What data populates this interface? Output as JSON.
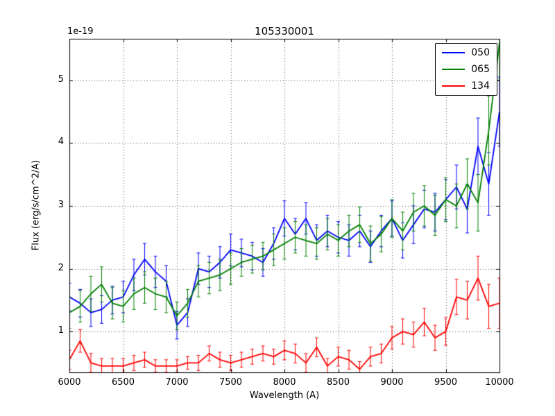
{
  "chart_data": {
    "type": "line",
    "title": "105330001",
    "xlabel": "Wavelength (A)",
    "ylabel": "Flux (erg/s/cm^2/A)",
    "y_offset_label": "1e-19",
    "xlim": [
      6000,
      10000
    ],
    "ylim": [
      0.35,
      5.66
    ],
    "xticks": [
      6000,
      6500,
      7000,
      7500,
      8000,
      8500,
      9000,
      9500,
      10000
    ],
    "yticks": [
      1,
      2,
      3,
      4,
      5
    ],
    "grid": true,
    "grid_style": "dotted",
    "legend_position": "upper right",
    "frame_color": "#000000",
    "background_color": "#ffffff",
    "x": [
      6000,
      6100,
      6200,
      6300,
      6400,
      6500,
      6600,
      6700,
      6800,
      6900,
      7000,
      7100,
      7200,
      7300,
      7400,
      7500,
      7600,
      7700,
      7800,
      7900,
      8000,
      8100,
      8200,
      8300,
      8400,
      8500,
      8600,
      8700,
      8800,
      8900,
      9000,
      9100,
      9200,
      9300,
      9400,
      9500,
      9600,
      9700,
      9800,
      9900,
      10000
    ],
    "series": [
      {
        "name": "050",
        "color": "#0000ff",
        "values": [
          1.55,
          1.45,
          1.3,
          1.35,
          1.5,
          1.55,
          1.9,
          2.15,
          1.95,
          1.8,
          1.1,
          1.3,
          2.0,
          1.95,
          2.1,
          2.3,
          2.25,
          2.2,
          2.1,
          2.4,
          2.8,
          2.55,
          2.8,
          2.45,
          2.6,
          2.5,
          2.45,
          2.6,
          2.35,
          2.6,
          2.8,
          2.45,
          2.7,
          2.95,
          2.9,
          3.1,
          3.3,
          2.95,
          3.95,
          3.35,
          4.5
        ],
        "errors": [
          0.22,
          0.22,
          0.22,
          0.22,
          0.22,
          0.25,
          0.25,
          0.25,
          0.25,
          0.25,
          0.22,
          0.22,
          0.25,
          0.25,
          0.25,
          0.25,
          0.22,
          0.22,
          0.22,
          0.25,
          0.28,
          0.25,
          0.25,
          0.25,
          0.25,
          0.25,
          0.25,
          0.25,
          0.25,
          0.25,
          0.28,
          0.28,
          0.3,
          0.3,
          0.3,
          0.32,
          0.35,
          0.38,
          0.45,
          0.5,
          0.55
        ]
      },
      {
        "name": "065",
        "color": "#008000",
        "values": [
          1.3,
          1.4,
          1.6,
          1.75,
          1.45,
          1.4,
          1.6,
          1.7,
          1.6,
          1.55,
          1.25,
          1.45,
          1.8,
          1.85,
          1.9,
          2.0,
          2.1,
          2.15,
          2.2,
          2.3,
          2.4,
          2.5,
          2.45,
          2.4,
          2.55,
          2.45,
          2.6,
          2.7,
          2.4,
          2.55,
          2.8,
          2.6,
          2.9,
          3.0,
          2.85,
          3.1,
          3.0,
          3.35,
          3.05,
          4.2,
          5.6
        ],
        "errors": [
          0.25,
          0.25,
          0.28,
          0.28,
          0.25,
          0.25,
          0.25,
          0.25,
          0.25,
          0.25,
          0.22,
          0.22,
          0.25,
          0.25,
          0.25,
          0.25,
          0.22,
          0.22,
          0.22,
          0.25,
          0.25,
          0.25,
          0.25,
          0.25,
          0.25,
          0.25,
          0.25,
          0.28,
          0.28,
          0.28,
          0.3,
          0.3,
          0.3,
          0.32,
          0.32,
          0.35,
          0.35,
          0.4,
          0.45,
          0.55,
          0.6
        ]
      },
      {
        "name": "134",
        "color": "#ff0000",
        "values": [
          0.55,
          0.85,
          0.5,
          0.45,
          0.45,
          0.45,
          0.5,
          0.55,
          0.45,
          0.45,
          0.45,
          0.5,
          0.5,
          0.65,
          0.55,
          0.5,
          0.55,
          0.6,
          0.65,
          0.6,
          0.7,
          0.65,
          0.5,
          0.75,
          0.45,
          0.6,
          0.55,
          0.4,
          0.6,
          0.65,
          0.9,
          1.0,
          0.95,
          1.15,
          0.9,
          1.0,
          1.55,
          1.5,
          1.85,
          1.4,
          1.45
        ],
        "errors": [
          0.15,
          0.18,
          0.15,
          0.12,
          0.12,
          0.12,
          0.12,
          0.12,
          0.1,
          0.1,
          0.1,
          0.1,
          0.12,
          0.12,
          0.12,
          0.12,
          0.12,
          0.12,
          0.12,
          0.12,
          0.15,
          0.15,
          0.15,
          0.15,
          0.12,
          0.15,
          0.15,
          0.12,
          0.15,
          0.15,
          0.18,
          0.2,
          0.2,
          0.22,
          0.2,
          0.22,
          0.28,
          0.3,
          0.35,
          0.35,
          0.4
        ]
      }
    ]
  }
}
